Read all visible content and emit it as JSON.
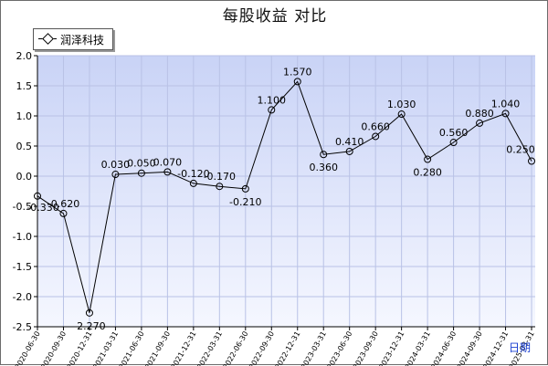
{
  "chart_data": {
    "type": "line",
    "title": "每股收益  对比",
    "legend": "润泽科技",
    "x_axis_suffix": "日期",
    "categories": [
      "2020-06-30",
      "2020-09-30",
      "2020-12-31",
      "2021-03-31",
      "2021-06-30",
      "2021-09-30",
      "2021-12-31",
      "2022-03-31",
      "2022-06-30",
      "2022-09-30",
      "2022-12-31",
      "2023-03-31",
      "2023-06-30",
      "2023-09-30",
      "2023-12-31",
      "2024-03-31",
      "2024-06-30",
      "2024-09-30",
      "2024-12-31",
      "2025-03-31"
    ],
    "values": [
      -0.33,
      -0.62,
      -2.27,
      0.03,
      0.05,
      0.07,
      -0.12,
      -0.17,
      -0.21,
      1.1,
      1.57,
      0.36,
      0.41,
      0.66,
      1.03,
      0.28,
      0.56,
      0.88,
      1.04,
      0.25
    ],
    "value_labels": [
      "-0.330",
      "-0.620",
      "-2.270",
      "0.030",
      "0.050",
      "0.070",
      "-0.120",
      "-0.170",
      "-0.210",
      "1.100",
      "1.570",
      "0.360",
      "0.410",
      "0.660",
      "1.030",
      "0.280",
      "0.560",
      "0.880",
      "1.040",
      "0.250"
    ],
    "y_ticks": [
      "2.0",
      "1.5",
      "1.0",
      "0.5",
      "0.0",
      "-0.5",
      "-1.0",
      "-1.5",
      "-2.0",
      "-2.5"
    ],
    "ylim": [
      -2.5,
      2.0
    ],
    "grid": true,
    "legend_position": "top-left",
    "colors": {
      "plot_bg_top": "#c9d3f6",
      "plot_bg_bottom": "#f5f7ff",
      "grid": "#b9c2e6",
      "line": "#000000",
      "period_label": "#1a3fd1"
    }
  }
}
